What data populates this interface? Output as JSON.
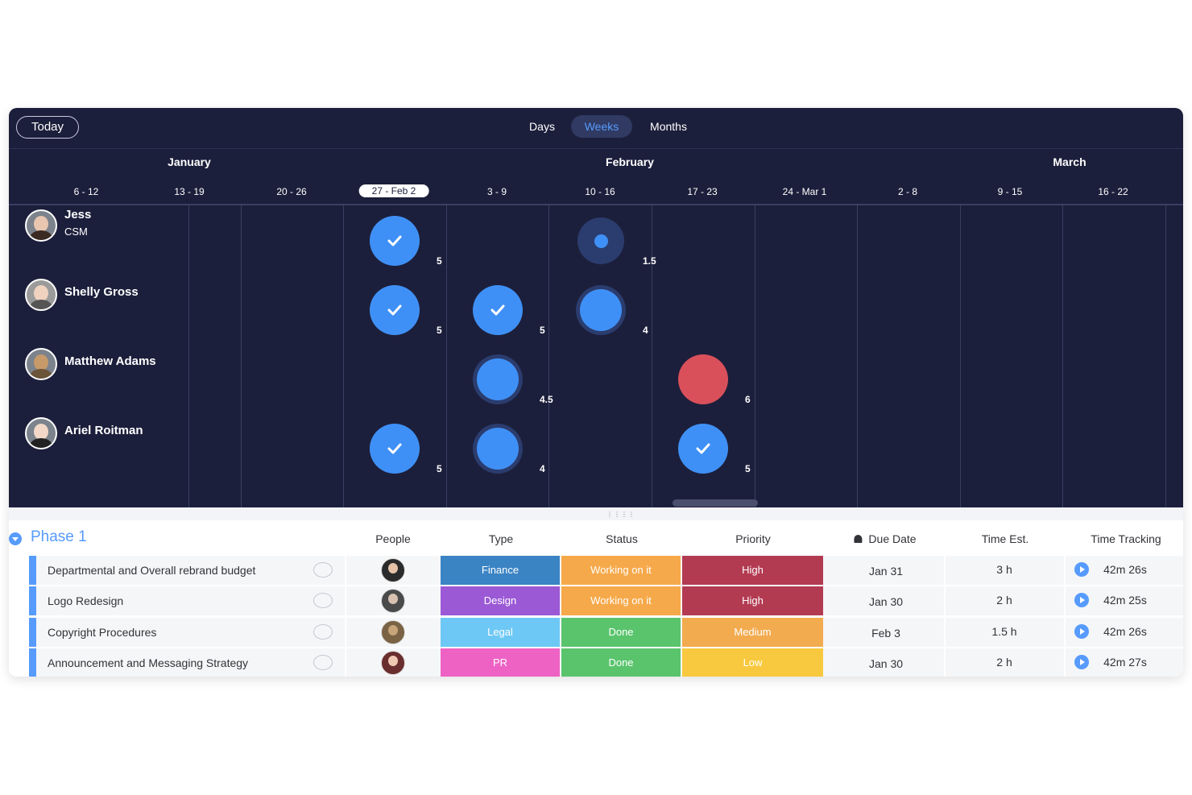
{
  "toolbar": {
    "today_label": "Today"
  },
  "views": [
    {
      "label": "Days",
      "active": false
    },
    {
      "label": "Weeks",
      "active": true
    },
    {
      "label": "Months",
      "active": false
    }
  ],
  "months": [
    "January",
    "February",
    "March"
  ],
  "weeks": [
    "6 - 12",
    "13 - 19",
    "20 - 26",
    "27 - Feb 2",
    "3 - 9",
    "10 - 16",
    "17 - 23",
    "24 - Mar 1",
    "2 - 8",
    "9 - 15",
    "16 - 22"
  ],
  "current_week": "27 - Feb 2",
  "people": [
    {
      "name": "Jess",
      "role": "CSM",
      "workload": [
        {
          "week": "27 - Feb 2",
          "value": "5",
          "state": "done"
        },
        {
          "week": "10 - 16",
          "value": "1.5",
          "state": "small"
        }
      ]
    },
    {
      "name": "Shelly Gross",
      "role": "",
      "workload": [
        {
          "week": "27 - Feb 2",
          "value": "5",
          "state": "done"
        },
        {
          "week": "3 - 9",
          "value": "5",
          "state": "done"
        },
        {
          "week": "10 - 16",
          "value": "4",
          "state": "partial"
        }
      ]
    },
    {
      "name": "Matthew Adams",
      "role": "",
      "workload": [
        {
          "week": "3 - 9",
          "value": "4.5",
          "state": "partial"
        },
        {
          "week": "17 - 23",
          "value": "6",
          "state": "over"
        }
      ]
    },
    {
      "name": "Ariel Roitman",
      "role": "",
      "workload": [
        {
          "week": "27 - Feb 2",
          "value": "5",
          "state": "done"
        },
        {
          "week": "3 - 9",
          "value": "4",
          "state": "partial"
        },
        {
          "week": "17 - 23",
          "value": "5",
          "state": "done"
        }
      ]
    }
  ],
  "table": {
    "group_title": "Phase 1",
    "columns": {
      "people": "People",
      "type": "Type",
      "status": "Status",
      "priority": "Priority",
      "due": "Due Date",
      "estimate": "Time Est.",
      "tracking": "Time Tracking"
    },
    "rows": [
      {
        "name": "Departmental and Overall rebrand budget",
        "type": "Finance",
        "status": "Working on it",
        "priority": "High",
        "due": "Jan 31",
        "estimate": "3 h",
        "tracking": "42m 26s"
      },
      {
        "name": "Logo Redesign",
        "type": "Design",
        "status": "Working on it",
        "priority": "High",
        "due": "Jan 30",
        "estimate": "2 h",
        "tracking": "42m 25s"
      },
      {
        "name": "Copyright Procedures",
        "type": "Legal",
        "status": "Done",
        "priority": "Medium",
        "due": "Feb 3",
        "estimate": "1.5 h",
        "tracking": "42m 26s"
      },
      {
        "name": "Announcement and Messaging Strategy",
        "type": "PR",
        "status": "Done",
        "priority": "Low",
        "due": "Jan 30",
        "estimate": "2 h",
        "tracking": "42m 27s"
      }
    ]
  },
  "colors": {
    "background_dark": "#1c1f3b",
    "accent": "#579bfc",
    "type": {
      "Finance": "#3b84c4",
      "Design": "#9b59d6",
      "Legal": "#6ec8f5",
      "PR": "#ee62c4"
    },
    "status": {
      "Working on it": "#f6a94a",
      "Done": "#5ac46d"
    },
    "priority": {
      "High": "#b23b52",
      "Medium": "#f2ab4f",
      "Low": "#f8c93f"
    }
  }
}
